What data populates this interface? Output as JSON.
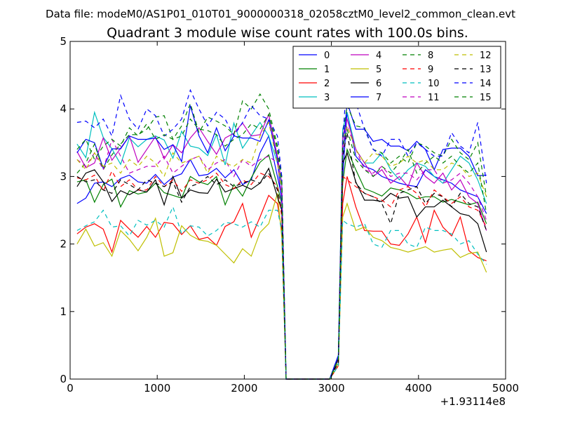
{
  "header": {
    "data_file": "Data file: modeM0/AS1P01_010T01_9000000318_02058cztM0_level2_common_clean.evt"
  },
  "chart_data": {
    "type": "line",
    "title": "Quadrant 3 module wise count rates with 100.0s bins.",
    "xlabel": "",
    "ylabel": "",
    "x_offset_label": "+1.93114e8",
    "xlim": [
      0,
      5000
    ],
    "ylim": [
      0,
      5
    ],
    "x_ticks": [
      0,
      1000,
      2000,
      3000,
      4000,
      5000
    ],
    "x_tick_labels": [
      "0",
      "1000",
      "2000",
      "3000",
      "4000",
      "5000"
    ],
    "y_ticks": [
      0,
      1,
      2,
      3,
      4,
      5
    ],
    "y_tick_labels": [
      "0",
      "1",
      "2",
      "3",
      "4",
      "5"
    ],
    "grid": false,
    "legend_placement": "top-right",
    "x": [
      80,
      180,
      280,
      380,
      480,
      580,
      680,
      780,
      880,
      980,
      1080,
      1180,
      1280,
      1380,
      1480,
      1580,
      1680,
      1780,
      1880,
      1980,
      2080,
      2180,
      2280,
      2380,
      2430,
      2480,
      2580,
      2680,
      2780,
      2880,
      2980,
      3080,
      3130,
      3180,
      3280,
      3380,
      3480,
      3580,
      3680,
      3780,
      3880,
      3980,
      4080,
      4180,
      4280,
      4380,
      4480,
      4580,
      4680,
      4780
    ],
    "series": [
      {
        "name": "0",
        "color": "#0000ff",
        "dash": "solid",
        "values": [
          2.6,
          2.68,
          2.9,
          2.92,
          2.85,
          2.97,
          3.02,
          2.92,
          2.9,
          3.03,
          2.88,
          2.99,
          3.04,
          3.25,
          3.01,
          3.03,
          3.12,
          2.98,
          3.1,
          2.88,
          2.95,
          3.35,
          3.6,
          3.0,
          2.7,
          0.0,
          0.0,
          0.0,
          0.0,
          0.0,
          0.0,
          0.3,
          3.0,
          3.95,
          3.3,
          3.15,
          3.1,
          3.0,
          2.95,
          2.9,
          2.87,
          2.85,
          3.1,
          3.0,
          2.95,
          2.9,
          2.8,
          2.75,
          2.7,
          2.45
        ]
      },
      {
        "name": "1",
        "color": "#008000",
        "dash": "solid",
        "values": [
          2.92,
          2.95,
          2.62,
          2.88,
          2.96,
          2.55,
          2.79,
          2.74,
          2.77,
          2.9,
          2.76,
          2.72,
          2.68,
          3.0,
          2.92,
          2.88,
          3.0,
          2.58,
          2.88,
          2.71,
          2.98,
          3.21,
          3.32,
          2.86,
          2.6,
          0.0,
          0.0,
          0.0,
          0.0,
          0.0,
          0.0,
          0.2,
          2.9,
          3.4,
          3.1,
          2.82,
          2.77,
          2.71,
          2.83,
          2.8,
          2.75,
          2.67,
          2.7,
          2.7,
          2.62,
          2.66,
          2.62,
          2.58,
          2.62,
          2.3
        ]
      },
      {
        "name": "2",
        "color": "#ff0000",
        "dash": "solid",
        "values": [
          2.15,
          2.25,
          2.3,
          2.22,
          1.88,
          2.35,
          2.22,
          2.1,
          2.26,
          2.1,
          2.32,
          2.3,
          2.14,
          2.27,
          2.07,
          2.1,
          1.98,
          2.26,
          2.33,
          2.6,
          2.1,
          2.4,
          2.72,
          2.6,
          2.2,
          0.0,
          0.0,
          0.0,
          0.0,
          0.0,
          0.0,
          0.2,
          2.6,
          3.0,
          2.55,
          2.2,
          2.19,
          2.19,
          2.0,
          1.98,
          2.15,
          2.4,
          2.02,
          2.5,
          2.25,
          2.12,
          2.4,
          1.9,
          1.8,
          1.75
        ]
      },
      {
        "name": "3",
        "color": "#00bfbf",
        "dash": "solid",
        "values": [
          3.48,
          3.28,
          3.95,
          3.58,
          3.41,
          3.18,
          3.57,
          3.44,
          3.55,
          3.6,
          3.54,
          3.27,
          3.67,
          3.45,
          3.42,
          3.31,
          3.62,
          3.17,
          3.79,
          3.42,
          3.61,
          3.8,
          3.6,
          3.2,
          2.85,
          0.0,
          0.0,
          0.0,
          0.0,
          0.0,
          0.0,
          0.35,
          3.7,
          3.95,
          3.4,
          3.2,
          3.2,
          3.35,
          3.1,
          2.95,
          3.1,
          3.2,
          3.15,
          3.0,
          2.9,
          3.1,
          3.3,
          3.2,
          2.95,
          2.6
        ]
      },
      {
        "name": "4",
        "color": "#bf00bf",
        "dash": "solid",
        "values": [
          3.37,
          3.13,
          3.2,
          3.57,
          3.24,
          3.42,
          3.6,
          3.21,
          3.4,
          3.59,
          3.26,
          3.47,
          3.35,
          3.57,
          3.72,
          3.52,
          3.33,
          3.57,
          3.64,
          3.79,
          3.6,
          3.62,
          3.92,
          3.3,
          2.9,
          0.0,
          0.0,
          0.0,
          0.0,
          0.0,
          0.0,
          0.3,
          3.6,
          3.85,
          3.4,
          3.2,
          3.0,
          3.1,
          2.9,
          3.0,
          2.85,
          3.2,
          3.0,
          2.9,
          3.05,
          2.8,
          2.95,
          2.7,
          2.6,
          2.2
        ]
      },
      {
        "name": "5",
        "color": "#bfbf00",
        "dash": "solid",
        "values": [
          2.0,
          2.22,
          1.97,
          2.02,
          1.82,
          2.2,
          2.07,
          1.9,
          2.1,
          2.38,
          1.82,
          1.87,
          2.27,
          2.13,
          2.06,
          2.04,
          1.98,
          1.85,
          1.72,
          1.93,
          1.82,
          2.17,
          2.3,
          2.75,
          2.1,
          0.0,
          0.0,
          0.0,
          0.0,
          0.0,
          0.0,
          0.2,
          2.4,
          2.6,
          2.2,
          2.25,
          2.1,
          2.05,
          1.95,
          1.92,
          1.88,
          1.92,
          1.96,
          1.88,
          1.91,
          1.93,
          1.8,
          1.86,
          1.88,
          1.58
        ]
      },
      {
        "name": "6",
        "color": "#000000",
        "dash": "solid",
        "values": [
          2.85,
          3.05,
          3.1,
          2.92,
          2.63,
          2.79,
          2.73,
          2.8,
          2.77,
          2.95,
          2.58,
          3.0,
          2.68,
          2.8,
          2.76,
          2.75,
          2.96,
          2.77,
          2.82,
          2.87,
          2.81,
          2.9,
          3.12,
          2.7,
          2.5,
          0.0,
          0.0,
          0.0,
          0.0,
          0.0,
          0.0,
          0.3,
          3.2,
          3.35,
          2.92,
          2.65,
          2.65,
          2.63,
          2.75,
          2.68,
          2.7,
          2.4,
          2.55,
          2.55,
          2.65,
          2.55,
          2.45,
          2.42,
          2.3,
          1.88
        ]
      },
      {
        "name": "7",
        "color": "#0000ff",
        "dash": "solid",
        "values": [
          3.35,
          3.55,
          3.5,
          3.12,
          3.41,
          3.41,
          3.6,
          3.55,
          3.55,
          3.57,
          3.4,
          3.47,
          3.22,
          4.05,
          3.6,
          3.35,
          3.72,
          3.38,
          3.6,
          3.57,
          3.57,
          3.52,
          3.84,
          3.25,
          2.6,
          0.0,
          0.0,
          0.0,
          0.0,
          0.0,
          0.0,
          0.35,
          3.3,
          4.1,
          3.7,
          3.7,
          3.52,
          3.55,
          3.45,
          3.45,
          3.38,
          3.52,
          3.4,
          3.1,
          3.4,
          3.42,
          3.42,
          3.3,
          3.01,
          3.02
        ]
      },
      {
        "name": "8",
        "color": "#008000",
        "dash": "dashdot",
        "values": [
          3.05,
          3.2,
          3.48,
          3.1,
          3.32,
          3.48,
          3.62,
          3.62,
          3.7,
          3.88,
          3.9,
          3.55,
          3.75,
          4.08,
          3.65,
          3.88,
          3.82,
          3.75,
          3.62,
          4.12,
          4.0,
          4.22,
          4.0,
          3.45,
          3.0,
          0.0,
          0.0,
          0.0,
          0.0,
          0.0,
          0.0,
          0.25,
          3.6,
          4.05,
          3.75,
          3.72,
          3.4,
          3.35,
          3.2,
          3.3,
          3.2,
          3.5,
          3.45,
          3.35,
          3.3,
          3.55,
          3.35,
          3.25,
          3.5,
          2.7
        ]
      },
      {
        "name": "9",
        "color": "#ff0000",
        "dash": "dashdot",
        "values": [
          2.98,
          2.95,
          3.02,
          2.78,
          3.08,
          2.85,
          2.95,
          2.8,
          2.8,
          3.0,
          2.85,
          2.95,
          2.78,
          2.95,
          2.9,
          2.95,
          3.05,
          2.88,
          2.82,
          2.95,
          2.88,
          3.05,
          3.0,
          2.85,
          2.4,
          0.0,
          0.0,
          0.0,
          0.0,
          0.0,
          0.0,
          0.2,
          3.0,
          2.95,
          2.85,
          2.75,
          2.7,
          2.65,
          2.55,
          2.8,
          2.85,
          2.75,
          2.55,
          2.8,
          2.7,
          2.6,
          2.7,
          2.55,
          2.5,
          2.25
        ]
      },
      {
        "name": "10",
        "color": "#00bfbf",
        "dash": "dashdot",
        "values": [
          2.2,
          2.27,
          2.33,
          2.5,
          2.25,
          2.27,
          2.12,
          2.35,
          2.28,
          2.35,
          2.25,
          2.55,
          2.15,
          2.27,
          2.25,
          2.12,
          2.2,
          2.32,
          2.3,
          2.25,
          2.33,
          2.25,
          2.5,
          2.5,
          2.2,
          0.0,
          0.0,
          0.0,
          0.0,
          0.0,
          0.0,
          0.2,
          2.35,
          2.3,
          2.25,
          2.3,
          2.0,
          1.95,
          2.2,
          2.2,
          2.0,
          1.95,
          2.25,
          2.2,
          2.2,
          2.15,
          2.0,
          2.05,
          1.85,
          1.7
        ]
      },
      {
        "name": "11",
        "color": "#bf00bf",
        "dash": "dashdot",
        "values": [
          3.25,
          3.15,
          3.35,
          3.1,
          3.55,
          3.3,
          3.05,
          3.1,
          3.15,
          3.15,
          3.3,
          3.05,
          3.15,
          3.25,
          3.3,
          3.1,
          3.2,
          3.25,
          3.0,
          3.25,
          3.15,
          3.25,
          3.3,
          3.2,
          2.7,
          0.0,
          0.0,
          0.0,
          0.0,
          0.0,
          0.0,
          0.25,
          3.4,
          3.75,
          3.4,
          3.1,
          3.05,
          3.15,
          3.0,
          3.05,
          3.05,
          2.95,
          3.1,
          3.1,
          2.9,
          2.95,
          3.05,
          2.9,
          2.7,
          2.35
        ]
      },
      {
        "name": "12",
        "color": "#bfbf00",
        "dash": "dashdot",
        "values": [
          3.25,
          3.1,
          3.35,
          3.15,
          3.2,
          3.05,
          3.25,
          3.15,
          3.3,
          3.2,
          3.0,
          3.35,
          3.2,
          3.25,
          3.3,
          3.05,
          3.3,
          3.2,
          3.15,
          3.25,
          3.2,
          3.6,
          3.8,
          3.2,
          2.8,
          0.0,
          0.0,
          0.0,
          0.0,
          0.0,
          0.0,
          0.25,
          3.55,
          3.75,
          3.4,
          3.2,
          3.35,
          3.3,
          3.15,
          3.2,
          3.3,
          3.2,
          3.25,
          3.1,
          3.1,
          3.2,
          3.15,
          3.0,
          3.05,
          2.7
        ]
      },
      {
        "name": "13",
        "color": "#000000",
        "dash": "dashdot",
        "values": [
          3.0,
          2.92,
          2.95,
          2.8,
          2.75,
          2.95,
          2.88,
          2.8,
          2.95,
          2.9,
          2.85,
          2.92,
          2.62,
          2.85,
          2.9,
          3.0,
          2.88,
          2.95,
          2.85,
          2.9,
          2.95,
          2.9,
          3.05,
          2.8,
          2.5,
          0.0,
          0.0,
          0.0,
          0.0,
          0.0,
          0.0,
          0.25,
          3.3,
          3.65,
          2.9,
          2.75,
          2.7,
          2.6,
          2.3,
          2.75,
          2.8,
          2.85,
          2.6,
          2.75,
          2.7,
          2.55,
          2.75,
          2.6,
          2.55,
          2.2
        ]
      },
      {
        "name": "14",
        "color": "#0000ff",
        "dash": "dashdot",
        "values": [
          3.8,
          3.82,
          3.72,
          3.85,
          3.6,
          4.2,
          3.85,
          3.7,
          4.0,
          3.9,
          3.6,
          3.7,
          3.85,
          4.28,
          4.0,
          3.75,
          3.95,
          3.85,
          3.6,
          3.8,
          4.05,
          3.9,
          3.85,
          3.6,
          3.0,
          0.0,
          0.0,
          0.0,
          0.0,
          0.0,
          0.0,
          0.35,
          3.5,
          4.55,
          4.1,
          3.7,
          3.4,
          3.3,
          3.55,
          3.55,
          3.3,
          3.5,
          3.4,
          3.3,
          3.3,
          3.65,
          3.45,
          3.35,
          3.8,
          2.9
        ]
      },
      {
        "name": "15",
        "color": "#008000",
        "dash": "dashdot",
        "values": [
          3.4,
          3.55,
          3.25,
          3.45,
          3.55,
          3.45,
          3.72,
          3.6,
          3.78,
          3.55,
          3.62,
          3.55,
          3.6,
          3.85,
          3.7,
          3.68,
          3.62,
          3.45,
          3.55,
          3.62,
          3.78,
          3.7,
          3.92,
          3.4,
          2.9,
          0.0,
          0.0,
          0.0,
          0.0,
          0.0,
          0.0,
          0.3,
          3.45,
          3.7,
          3.25,
          3.1,
          3.0,
          3.15,
          3.05,
          3.2,
          3.4,
          3.05,
          3.2,
          3.3,
          3.2,
          3.3,
          3.15,
          3.05,
          3.2,
          2.45
        ]
      }
    ]
  }
}
